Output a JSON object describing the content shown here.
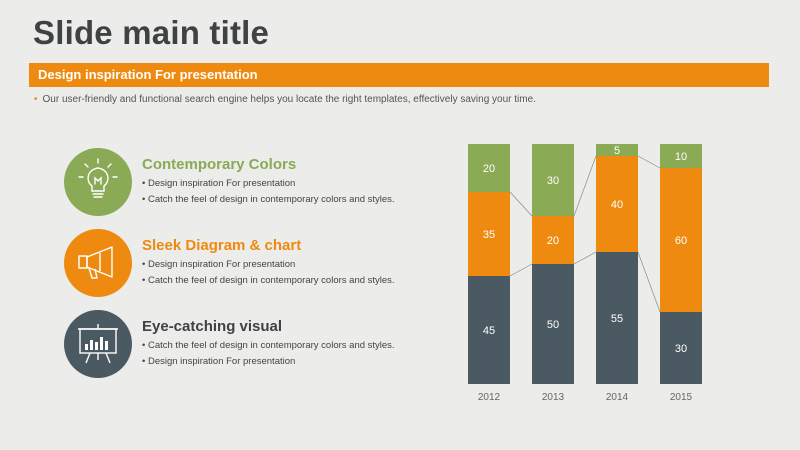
{
  "slide": {
    "title": "Slide main title",
    "banner": "Design inspiration For presentation",
    "tagline": "Our user-friendly and functional search engine helps you locate the right templates, effectively saving your time."
  },
  "features": [
    {
      "title": "Contemporary Colors",
      "color": "#8aaa55",
      "icon": "lightbulb-icon",
      "bullets": [
        "Design inspiration For presentation",
        "Catch the feel of design in contemporary colors and styles."
      ]
    },
    {
      "title": "Sleek Diagram & chart",
      "color": "#ef8a10",
      "icon": "megaphone-icon",
      "bullets": [
        "Design inspiration For presentation",
        "Catch the feel of design in contemporary colors and styles."
      ]
    },
    {
      "title": "Eye-catching visual",
      "color": "#4b5962",
      "icon": "presentation-board-icon",
      "bullets": [
        "Catch the feel of design in contemporary colors and styles.",
        "Design inspiration For presentation"
      ]
    }
  ],
  "chart_data": {
    "type": "bar",
    "stacked": true,
    "normalized": true,
    "categories": [
      "2012",
      "2013",
      "2014",
      "2015"
    ],
    "series": [
      {
        "values": [
          45,
          50,
          55,
          30
        ],
        "color": "#4b5962"
      },
      {
        "values": [
          35,
          20,
          40,
          60
        ],
        "color": "#ef8a10"
      },
      {
        "values": [
          20,
          30,
          5,
          10
        ],
        "color": "#8aaa55"
      }
    ],
    "ylim": [
      0,
      100
    ],
    "grid": false,
    "connector_lines": true
  }
}
